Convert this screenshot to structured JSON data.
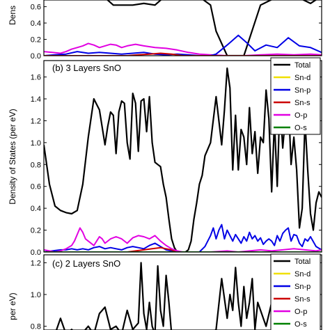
{
  "chart_data": [
    {
      "type": "line",
      "panel_label": "",
      "ylabel": "Dens",
      "ylim": [
        0,
        0.75
      ],
      "yticks": [
        "0.0",
        "0.2",
        "0.4",
        "0.6"
      ],
      "ytick_values": [
        0,
        0.2,
        0.4,
        0.6
      ],
      "xlim": [
        0,
        100
      ],
      "legend": [],
      "series": [
        {
          "color": "#000000",
          "x": [
            0,
            5,
            10,
            14,
            18,
            21,
            25,
            28,
            32,
            36,
            40,
            44,
            48,
            52,
            56,
            60,
            62,
            66,
            72,
            78,
            84,
            90,
            96,
            100
          ],
          "y": [
            0.72,
            0.74,
            0.73,
            0.72,
            0.72,
            0.74,
            0.62,
            0.62,
            0.62,
            0.64,
            0.62,
            0.74,
            0.74,
            0.74,
            0.72,
            0.62,
            0.3,
            0.0,
            0.0,
            0.62,
            0.72,
            0.74,
            0.64,
            0.73
          ]
        },
        {
          "color": "#e100e1",
          "x": [
            0,
            3,
            6,
            8,
            10,
            12,
            14,
            16,
            18,
            20,
            22,
            24,
            26,
            28,
            30,
            33,
            36,
            40,
            44,
            48,
            52,
            56,
            60,
            66,
            72,
            78,
            84,
            90,
            96,
            100
          ],
          "y": [
            0.05,
            0.04,
            0.03,
            0.05,
            0.08,
            0.1,
            0.12,
            0.15,
            0.13,
            0.1,
            0.12,
            0.14,
            0.13,
            0.1,
            0.12,
            0.14,
            0.12,
            0.1,
            0.09,
            0.07,
            0.04,
            0.02,
            0.01,
            0.0,
            0.0,
            0.01,
            0.02,
            0.01,
            0.02,
            0.01
          ]
        },
        {
          "color": "#0000e6",
          "x": [
            0,
            4,
            8,
            12,
            16,
            20,
            24,
            28,
            32,
            36,
            40,
            44,
            48,
            52,
            56,
            60,
            62,
            66,
            70,
            73,
            76,
            80,
            84,
            88,
            92,
            96,
            100
          ],
          "y": [
            0.0,
            0.01,
            0.02,
            0.05,
            0.03,
            0.04,
            0.03,
            0.02,
            0.03,
            0.04,
            0.02,
            0.01,
            0.02,
            0.01,
            0.0,
            0.0,
            0.02,
            0.13,
            0.25,
            0.16,
            0.06,
            0.13,
            0.1,
            0.22,
            0.12,
            0.1,
            0.04
          ]
        },
        {
          "color": "#cc0000",
          "x": [
            0,
            30,
            34,
            38,
            42,
            46,
            50,
            100
          ],
          "y": [
            0.0,
            0.0,
            0.01,
            0.02,
            0.03,
            0.02,
            0.0,
            0.0
          ]
        }
      ]
    },
    {
      "type": "line",
      "panel_label": "(b) 3 Layers SnO",
      "ylabel": "Density of States (per eV)",
      "ylim": [
        0,
        1.75
      ],
      "yticks": [
        "0.0",
        "0.2",
        "0.4",
        "0.6",
        "0.8",
        "1.0",
        "1.2",
        "1.4",
        "1.6"
      ],
      "ytick_values": [
        0,
        0.2,
        0.4,
        0.6,
        0.8,
        1.0,
        1.2,
        1.4,
        1.6
      ],
      "xlim": [
        0,
        100
      ],
      "legend": [
        "Total",
        "Sn-d",
        "Sn-p",
        "Sn-s",
        "O-p",
        "O-s"
      ],
      "series": [
        {
          "name": "Total",
          "color": "#000000",
          "x": [
            0,
            2,
            4,
            6,
            8,
            10,
            12,
            14,
            16,
            18,
            20,
            22,
            23,
            24,
            25,
            26,
            27,
            28,
            29,
            30,
            31,
            32,
            33,
            34,
            35,
            36,
            37,
            38,
            39,
            40,
            41,
            42,
            43,
            44,
            45,
            46,
            47,
            48,
            49,
            50,
            51,
            52,
            53,
            54,
            55,
            56,
            57,
            58,
            60,
            62,
            64,
            65,
            66,
            67,
            68,
            69,
            70,
            71,
            72,
            73,
            74,
            75,
            76,
            77,
            78,
            79,
            80,
            81,
            82,
            83,
            84,
            85,
            86,
            87,
            88,
            89,
            90,
            91,
            92,
            93,
            94,
            95,
            96,
            97,
            98,
            99,
            100
          ],
          "y": [
            0.98,
            0.62,
            0.42,
            0.38,
            0.36,
            0.35,
            0.38,
            0.62,
            1.05,
            1.4,
            1.3,
            0.98,
            1.15,
            1.28,
            1.25,
            0.9,
            1.28,
            1.38,
            1.36,
            1.0,
            0.85,
            1.45,
            1.36,
            0.92,
            1.38,
            1.4,
            1.1,
            1.42,
            1.0,
            0.82,
            0.8,
            0.78,
            0.62,
            0.5,
            0.3,
            0.12,
            0.04,
            0.0,
            0.0,
            0.0,
            0.0,
            0.02,
            0.1,
            0.3,
            0.45,
            0.62,
            0.7,
            0.88,
            1.0,
            1.42,
            0.98,
            1.3,
            1.68,
            1.5,
            0.75,
            1.25,
            0.75,
            1.12,
            1.05,
            0.8,
            1.32,
            0.9,
            1.1,
            0.72,
            1.05,
            1.0,
            1.48,
            1.22,
            0.55,
            1.2,
            0.6,
            1.38,
            0.95,
            1.25,
            1.4,
            0.8,
            1.05,
            0.75,
            0.22,
            0.4,
            1.2,
            0.75,
            0.35,
            0.2,
            0.45,
            0.55,
            0.5
          ]
        },
        {
          "name": "Sn-d",
          "color": "#f0e000",
          "x": [
            0,
            100
          ],
          "y": [
            0.0,
            0.0
          ]
        },
        {
          "name": "Sn-p",
          "color": "#0000e6",
          "x": [
            0,
            3,
            6,
            8,
            10,
            12,
            14,
            16,
            18,
            20,
            22,
            24,
            26,
            28,
            30,
            32,
            34,
            36,
            38,
            40,
            42,
            44,
            46,
            48,
            50,
            52,
            54,
            56,
            58,
            60,
            61,
            62,
            63,
            64,
            65,
            66,
            67,
            68,
            69,
            70,
            71,
            72,
            73,
            74,
            75,
            76,
            77,
            78,
            79,
            80,
            81,
            82,
            83,
            84,
            85,
            86,
            87,
            88,
            89,
            90,
            91,
            92,
            93,
            94,
            95,
            96,
            98,
            100
          ],
          "y": [
            0.0,
            0.01,
            0.02,
            0.02,
            0.03,
            0.02,
            0.03,
            0.02,
            0.04,
            0.05,
            0.03,
            0.04,
            0.03,
            0.02,
            0.04,
            0.05,
            0.04,
            0.03,
            0.06,
            0.08,
            0.05,
            0.02,
            0.01,
            0.0,
            0.0,
            0.0,
            0.0,
            0.0,
            0.05,
            0.15,
            0.22,
            0.12,
            0.2,
            0.25,
            0.12,
            0.2,
            0.15,
            0.1,
            0.16,
            0.12,
            0.08,
            0.14,
            0.1,
            0.18,
            0.12,
            0.15,
            0.1,
            0.13,
            0.07,
            0.1,
            0.12,
            0.1,
            0.06,
            0.15,
            0.1,
            0.17,
            0.2,
            0.22,
            0.1,
            0.16,
            0.15,
            0.08,
            0.05,
            0.12,
            0.1,
            0.14,
            0.05,
            0.02
          ]
        },
        {
          "name": "Sn-s",
          "color": "#cc0000",
          "x": [
            0,
            30,
            33,
            36,
            39,
            42,
            44,
            46,
            48,
            100
          ],
          "y": [
            0.0,
            0.0,
            0.01,
            0.02,
            0.03,
            0.04,
            0.03,
            0.02,
            0.0,
            0.0
          ]
        },
        {
          "name": "O-p",
          "color": "#e100e1",
          "x": [
            0,
            2,
            4,
            6,
            8,
            10,
            11,
            12,
            13,
            14,
            15,
            16,
            17,
            18,
            19,
            20,
            21,
            22,
            24,
            26,
            28,
            30,
            32,
            34,
            36,
            38,
            40,
            42,
            44,
            46,
            48,
            50,
            54,
            60,
            66,
            70,
            74,
            78,
            82,
            86,
            90,
            94,
            98,
            100
          ],
          "y": [
            0.02,
            0.01,
            0.0,
            0.01,
            0.03,
            0.06,
            0.1,
            0.16,
            0.22,
            0.18,
            0.12,
            0.1,
            0.08,
            0.06,
            0.1,
            0.14,
            0.12,
            0.08,
            0.12,
            0.14,
            0.12,
            0.08,
            0.13,
            0.15,
            0.14,
            0.12,
            0.15,
            0.1,
            0.06,
            0.03,
            0.01,
            0.0,
            0.0,
            0.0,
            0.01,
            0.0,
            0.01,
            0.02,
            0.01,
            0.02,
            0.03,
            0.02,
            0.01,
            0.02
          ]
        },
        {
          "name": "O-s",
          "color": "#008000",
          "x": [
            0,
            100
          ],
          "y": [
            0.0,
            0.0
          ]
        }
      ]
    },
    {
      "type": "line",
      "panel_label": "(c) 2 Layers SnO",
      "ylabel": "per eV)",
      "ylim": [
        0.75,
        1.25
      ],
      "yticks": [
        "0.8",
        "1.0",
        "1.2"
      ],
      "ytick_values": [
        0.8,
        1.0,
        1.2
      ],
      "xlim": [
        0,
        100
      ],
      "legend": [
        "Total",
        "Sn-d",
        "Sn-p",
        "Sn-s",
        "O-p",
        "O-s"
      ],
      "series": [
        {
          "name": "Total",
          "color": "#000000",
          "x": [
            4,
            6,
            8,
            10,
            12,
            14,
            16,
            18,
            20,
            22,
            24,
            26,
            28,
            30,
            32,
            34,
            35,
            36,
            37,
            38,
            39,
            40,
            41,
            42,
            43,
            44,
            45,
            46,
            50,
            60,
            62,
            64,
            66,
            67,
            68,
            69,
            70,
            71,
            72,
            73,
            74,
            75,
            76,
            77,
            78,
            79,
            80,
            82,
            84,
            86,
            88,
            90,
            92,
            94,
            96
          ],
          "y": [
            0.75,
            0.85,
            0.75,
            0.78,
            0.75,
            0.76,
            0.8,
            0.75,
            0.88,
            0.92,
            0.78,
            0.8,
            0.75,
            0.9,
            0.78,
            0.82,
            1.2,
            0.88,
            0.78,
            0.95,
            0.8,
            0.75,
            1.18,
            0.9,
            0.8,
            1.12,
            0.95,
            0.75,
            0.75,
            0.75,
            0.78,
            1.1,
            0.85,
            1.0,
            0.9,
            1.17,
            0.95,
            0.8,
            1.05,
            0.85,
            0.95,
            1.1,
            0.78,
            0.95,
            0.9,
            0.85,
            0.8,
            0.95,
            0.78,
            0.88,
            0.75,
            0.8,
            0.75,
            0.85,
            0.75
          ]
        }
      ]
    }
  ]
}
